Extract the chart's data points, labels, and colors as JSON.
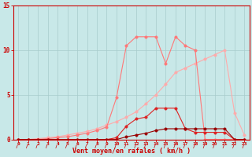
{
  "title": "",
  "xlabel": "Vent moyen/en rafales ( km/h )",
  "background_color": "#c8e8e8",
  "grid_color": "#a8cccc",
  "x_values": [
    0,
    1,
    2,
    3,
    4,
    5,
    6,
    7,
    8,
    9,
    10,
    11,
    12,
    13,
    14,
    15,
    16,
    17,
    18,
    19,
    20,
    21,
    22,
    23
  ],
  "line1_y": [
    0.0,
    0.0,
    0.1,
    0.2,
    0.3,
    0.5,
    0.7,
    0.9,
    1.2,
    1.6,
    2.0,
    2.5,
    3.1,
    4.0,
    5.0,
    6.2,
    7.5,
    8.0,
    8.5,
    9.0,
    9.5,
    10.0,
    3.0,
    0.5
  ],
  "line2_y": [
    0.0,
    0.0,
    0.0,
    0.1,
    0.2,
    0.3,
    0.5,
    0.7,
    1.0,
    1.4,
    4.7,
    10.5,
    11.5,
    11.5,
    11.5,
    8.5,
    11.5,
    10.5,
    10.0,
    0.0,
    0.0,
    0.0,
    0.0,
    0.0
  ],
  "line3_y": [
    0.0,
    0.0,
    0.0,
    0.0,
    0.0,
    0.0,
    0.0,
    0.0,
    0.0,
    0.0,
    0.2,
    1.5,
    2.3,
    2.5,
    3.5,
    3.5,
    3.5,
    1.2,
    0.8,
    0.8,
    0.8,
    0.8,
    0.0,
    0.0
  ],
  "line4_y": [
    0.0,
    0.0,
    0.0,
    0.0,
    0.0,
    0.0,
    0.0,
    0.0,
    0.0,
    0.0,
    0.0,
    0.3,
    0.5,
    0.7,
    1.0,
    1.2,
    1.2,
    1.2,
    1.2,
    1.2,
    1.2,
    1.2,
    0.0,
    0.0
  ],
  "line1_color": "#ffaaaa",
  "line2_color": "#ff7777",
  "line3_color": "#dd2222",
  "line4_color": "#990000",
  "ylim": [
    0,
    15
  ],
  "xlim": [
    -0.5,
    23.5
  ],
  "yticks": [
    0,
    5,
    10,
    15
  ],
  "xticks": [
    0,
    1,
    2,
    3,
    4,
    5,
    6,
    7,
    8,
    9,
    10,
    11,
    12,
    13,
    14,
    15,
    16,
    17,
    18,
    19,
    20,
    21,
    22,
    23
  ],
  "axis_color": "#cc0000",
  "tick_color": "#cc0000",
  "xlabel_color": "#cc0000"
}
